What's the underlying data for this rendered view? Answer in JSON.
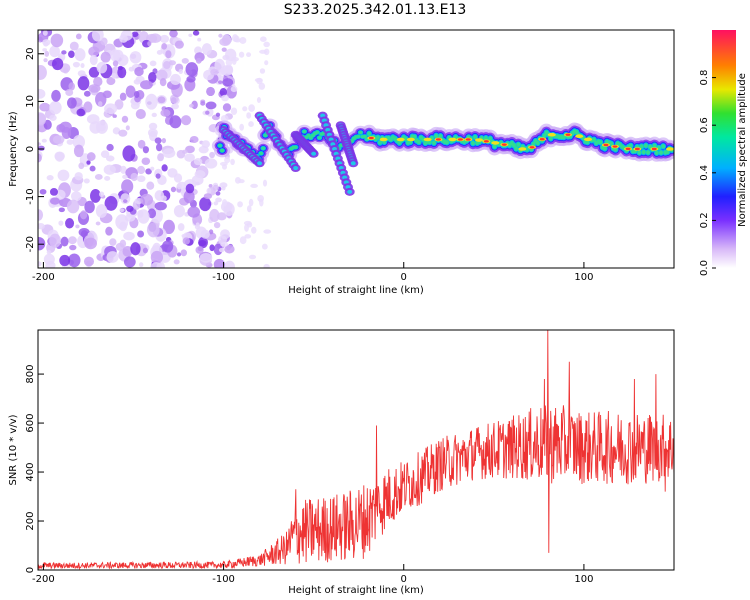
{
  "title": "S233.2025.342.01.13.E13",
  "chart_data": [
    {
      "type": "heatmap",
      "xlabel": "Height of straight line (km)",
      "ylabel": "Frequency (Hz)",
      "xlim": [
        -203,
        150
      ],
      "ylim": [
        -25,
        25
      ],
      "xticks": [
        -200,
        -100,
        0,
        100
      ],
      "yticks": [
        -20,
        -10,
        0,
        10,
        20
      ],
      "colorbar": {
        "label": "Normalized spectral amplitude",
        "range": [
          0,
          1
        ],
        "ticks": [
          0.0,
          0.2,
          0.4,
          0.6,
          0.8
        ]
      },
      "ridge": [
        {
          "x": -100,
          "f": 4
        },
        {
          "x": -90,
          "f": 1
        },
        {
          "x": -80,
          "f": -2
        },
        {
          "x": -75,
          "f": 5
        },
        {
          "x": -65,
          "f": -1
        },
        {
          "x": -55,
          "f": 3
        },
        {
          "x": -45,
          "f": 3
        },
        {
          "x": -35,
          "f": 0
        },
        {
          "x": -25,
          "f": 3
        },
        {
          "x": -15,
          "f": 2
        },
        {
          "x": 0,
          "f": 2
        },
        {
          "x": 20,
          "f": 2
        },
        {
          "x": 40,
          "f": 2
        },
        {
          "x": 55,
          "f": 1
        },
        {
          "x": 65,
          "f": 0
        },
        {
          "x": 70,
          "f": 0
        },
        {
          "x": 80,
          "f": 3
        },
        {
          "x": 95,
          "f": 3
        },
        {
          "x": 110,
          "f": 1
        },
        {
          "x": 125,
          "f": 0
        },
        {
          "x": 150,
          "f": 0
        }
      ]
    },
    {
      "type": "line",
      "xlabel": "Height of straight line (km)",
      "ylabel": "SNR (10 * v/v)",
      "xlim": [
        -203,
        150
      ],
      "ylim": [
        0,
        980
      ],
      "xticks": [
        -200,
        -100,
        0,
        100
      ],
      "yticks": [
        0,
        200,
        400,
        600,
        800
      ],
      "color": "#ee3333",
      "envelope": [
        {
          "x": -203,
          "mean": 18,
          "spread": 12
        },
        {
          "x": -100,
          "mean": 20,
          "spread": 14
        },
        {
          "x": -80,
          "mean": 40,
          "spread": 25
        },
        {
          "x": -65,
          "mean": 90,
          "spread": 70
        },
        {
          "x": -60,
          "mean": 150,
          "spread": 130
        },
        {
          "x": -50,
          "mean": 160,
          "spread": 140
        },
        {
          "x": -40,
          "mean": 170,
          "spread": 140
        },
        {
          "x": -30,
          "mean": 180,
          "spread": 150
        },
        {
          "x": -20,
          "mean": 210,
          "spread": 160
        },
        {
          "x": -10,
          "mean": 290,
          "spread": 130
        },
        {
          "x": 0,
          "mean": 340,
          "spread": 110
        },
        {
          "x": 10,
          "mean": 380,
          "spread": 110
        },
        {
          "x": 20,
          "mean": 430,
          "spread": 110
        },
        {
          "x": 40,
          "mean": 480,
          "spread": 110
        },
        {
          "x": 60,
          "mean": 500,
          "spread": 130
        },
        {
          "x": 80,
          "mean": 520,
          "spread": 170
        },
        {
          "x": 100,
          "mean": 500,
          "spread": 150
        },
        {
          "x": 130,
          "mean": 500,
          "spread": 150
        },
        {
          "x": 150,
          "mean": 500,
          "spread": 140
        }
      ],
      "spikes": [
        {
          "x": -60,
          "y": 330
        },
        {
          "x": -15,
          "y": 590
        },
        {
          "x": 80,
          "y": 980
        },
        {
          "x": 80.5,
          "y": 70
        },
        {
          "x": 78,
          "y": 780
        },
        {
          "x": 92,
          "y": 850
        },
        {
          "x": 128,
          "y": 780
        },
        {
          "x": 140,
          "y": 800
        },
        {
          "x": 145,
          "y": 320
        }
      ]
    }
  ]
}
